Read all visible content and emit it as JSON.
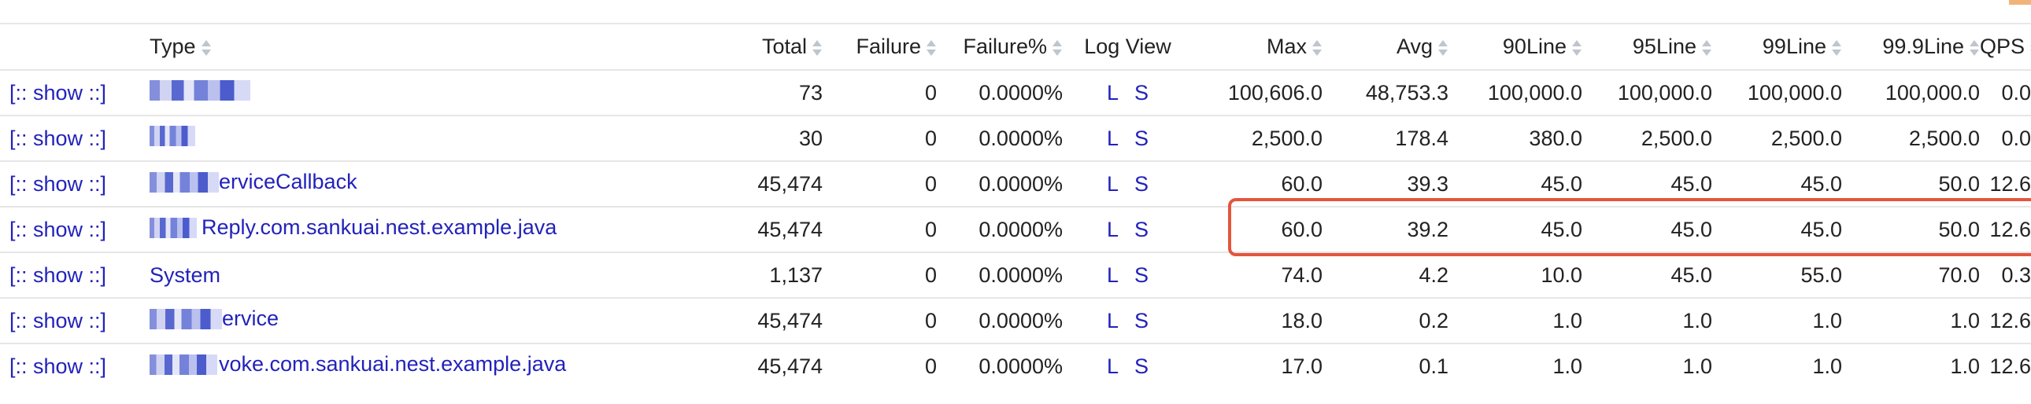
{
  "columns": {
    "type": "Type",
    "total": "Total",
    "failure": "Failure",
    "failure_pct": "Failure%",
    "log_view": "Log View",
    "max": "Max",
    "avg": "Avg",
    "line90": "90Line",
    "line95": "95Line",
    "line99": "99Line",
    "line999": "99.9Line",
    "qps": "QPS"
  },
  "show_label": "[:: show ::]",
  "log_link_l": "L",
  "log_link_s": "S",
  "rows": [
    {
      "type": "",
      "total": "73",
      "failure": "0",
      "failure_pct": "0.0000%",
      "max": "100,606.0",
      "avg": "48,753.3",
      "line90": "100,000.0",
      "line95": "100,000.0",
      "line99": "100,000.0",
      "line999": "100,000.0",
      "qps": "0.0"
    },
    {
      "type": "",
      "total": "30",
      "failure": "0",
      "failure_pct": "0.0000%",
      "max": "2,500.0",
      "avg": "178.4",
      "line90": "380.0",
      "line95": "2,500.0",
      "line99": "2,500.0",
      "line999": "2,500.0",
      "qps": "0.0"
    },
    {
      "type": "erviceCallback",
      "total": "45,474",
      "failure": "0",
      "failure_pct": "0.0000%",
      "max": "60.0",
      "avg": "39.3",
      "line90": "45.0",
      "line95": "45.0",
      "line99": "45.0",
      "line999": "50.0",
      "qps": "12.6"
    },
    {
      "type": "Reply.com.sankuai.nest.example.java",
      "total": "45,474",
      "failure": "0",
      "failure_pct": "0.0000%",
      "max": "60.0",
      "avg": "39.2",
      "line90": "45.0",
      "line95": "45.0",
      "line99": "45.0",
      "line999": "50.0",
      "qps": "12.6"
    },
    {
      "type": "System",
      "total": "1,137",
      "failure": "0",
      "failure_pct": "0.0000%",
      "max": "74.0",
      "avg": "4.2",
      "line90": "10.0",
      "line95": "45.0",
      "line99": "55.0",
      "line999": "70.0",
      "qps": "0.3"
    },
    {
      "type": "ervice",
      "total": "45,474",
      "failure": "0",
      "failure_pct": "0.0000%",
      "max": "18.0",
      "avg": "0.2",
      "line90": "1.0",
      "line95": "1.0",
      "line99": "1.0",
      "line999": "1.0",
      "qps": "12.6"
    },
    {
      "type": "voke.com.sankuai.nest.example.java",
      "total": "45,474",
      "failure": "0",
      "failure_pct": "0.0000%",
      "max": "17.0",
      "avg": "0.1",
      "line90": "1.0",
      "line95": "1.0",
      "line99": "1.0",
      "line999": "1.0",
      "qps": "12.6"
    }
  ],
  "colors": {
    "link": "#2222bb",
    "highlight": "#e4553c",
    "row_border": "#e6e6e6"
  }
}
